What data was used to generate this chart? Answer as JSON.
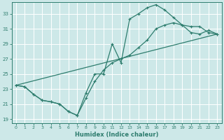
{
  "bg_color": "#cde8e8",
  "grid_color": "#ffffff",
  "line_color": "#2e7d6e",
  "xlabel": "Humidex (Indice chaleur)",
  "xlim": [
    -0.5,
    23.5
  ],
  "ylim": [
    18.5,
    34.5
  ],
  "yticks": [
    19,
    21,
    23,
    25,
    27,
    29,
    31,
    33
  ],
  "xticks": [
    0,
    1,
    2,
    3,
    4,
    5,
    6,
    7,
    8,
    9,
    10,
    11,
    12,
    13,
    14,
    15,
    16,
    17,
    18,
    19,
    20,
    21,
    22,
    23
  ],
  "line1_x": [
    0,
    1,
    2,
    3,
    4,
    5,
    6,
    7,
    8,
    9,
    10,
    11,
    12,
    13,
    14,
    15,
    16,
    17,
    18,
    19,
    20,
    21,
    22,
    23
  ],
  "line1_y": [
    23.5,
    23.3,
    22.3,
    21.5,
    21.3,
    21.0,
    20.0,
    19.5,
    22.5,
    25.0,
    25.0,
    29.0,
    26.5,
    32.3,
    33.0,
    33.8,
    34.2,
    33.5,
    32.5,
    31.5,
    31.3,
    31.3,
    30.5,
    30.3
  ],
  "line2_x": [
    0,
    1,
    2,
    3,
    4,
    5,
    6,
    7,
    8,
    9,
    10,
    11,
    12,
    13,
    14,
    15,
    16,
    17,
    18,
    19,
    20,
    21,
    22,
    23
  ],
  "line2_y": [
    23.5,
    23.3,
    22.3,
    21.5,
    21.3,
    21.0,
    20.0,
    19.5,
    21.8,
    24.0,
    25.5,
    26.5,
    27.0,
    27.5,
    28.5,
    29.5,
    31.0,
    31.5,
    31.8,
    31.5,
    30.5,
    30.3,
    30.8,
    30.3
  ],
  "line3_x": [
    0,
    23
  ],
  "line3_y": [
    23.5,
    30.3
  ]
}
